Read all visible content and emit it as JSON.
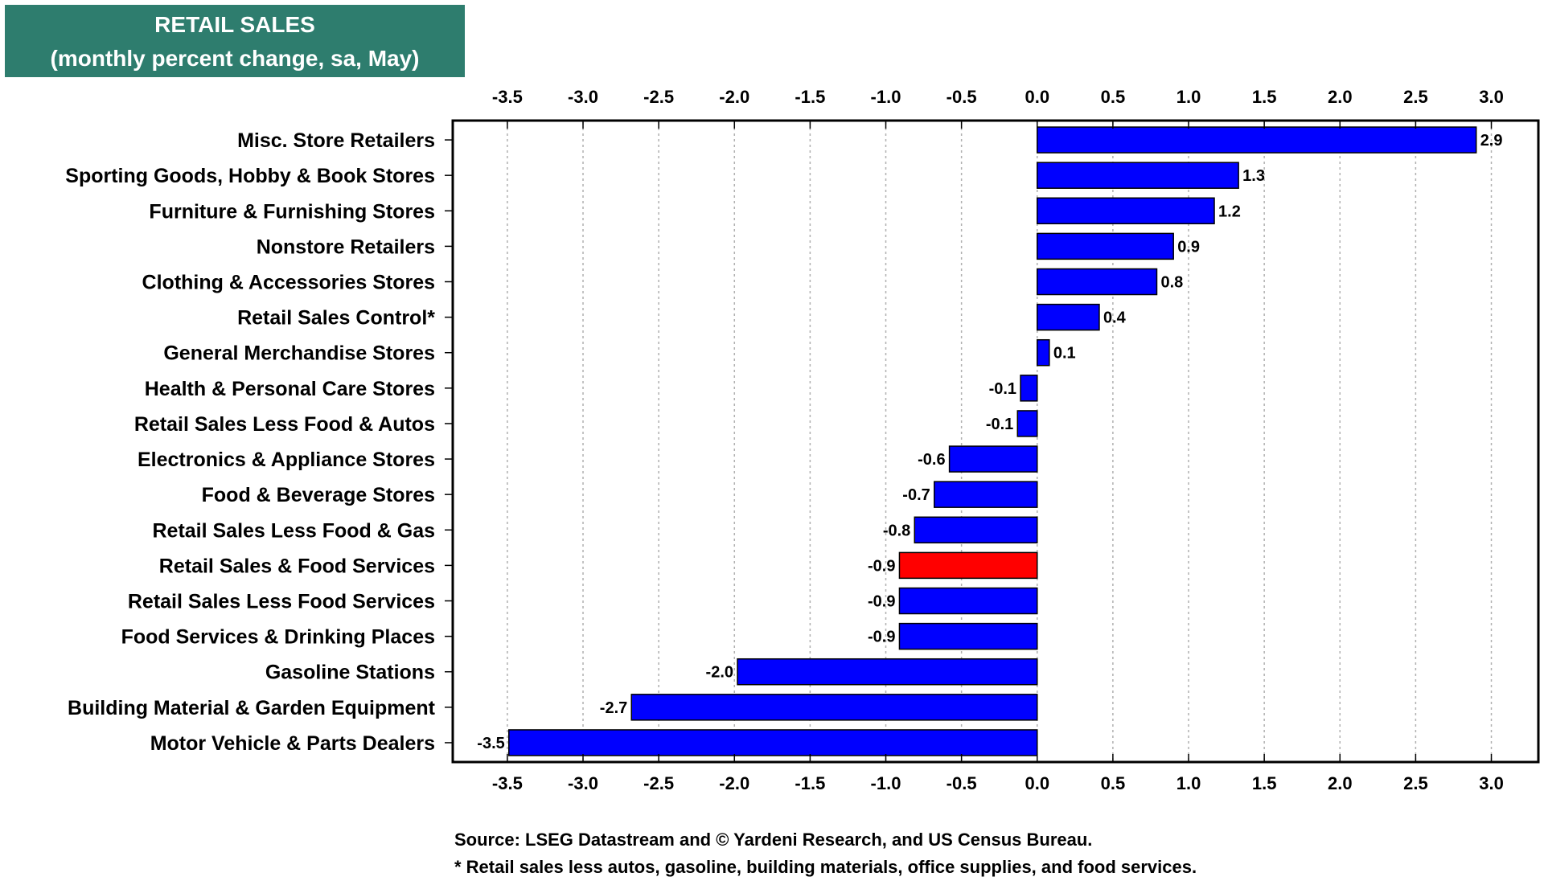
{
  "title": {
    "line1": "RETAIL SALES",
    "line2": "(monthly percent change, sa,  May)"
  },
  "colors": {
    "title_bg": "#2e7d6e",
    "bar": "#0000ff",
    "highlight": "#ff0000",
    "frame": "#000000"
  },
  "chart_data": {
    "type": "bar",
    "orientation": "horizontal",
    "title": "RETAIL SALES (monthly percent change, sa,  May)",
    "xlabel": "",
    "ylabel": "",
    "xlim": [
      -3.85,
      3.3
    ],
    "ticks": [
      "-3.5",
      "-3.0",
      "-2.5",
      "-2.0",
      "-1.5",
      "-1.0",
      "-0.5",
      "0.0",
      "0.5",
      "1.0",
      "1.5",
      "2.0",
      "2.5",
      "3.0"
    ],
    "tick_values": [
      -3.5,
      -3.0,
      -2.5,
      -2.0,
      -1.5,
      -1.0,
      -0.5,
      0.0,
      0.5,
      1.0,
      1.5,
      2.0,
      2.5,
      3.0
    ],
    "grid": true,
    "highlight_category": "Retail Sales & Food Services",
    "categories": [
      "Misc. Store Retailers",
      "Sporting Goods, Hobby & Book Stores",
      "Furniture & Furnishing Stores",
      "Nonstore Retailers",
      "Clothing & Accessories Stores",
      "Retail Sales Control*",
      "General Merchandise Stores",
      "Health & Personal Care Stores",
      "Retail Sales Less Food & Autos",
      "Electronics & Appliance Stores",
      "Food & Beverage Stores",
      "Retail Sales Less Food & Gas",
      "Retail Sales & Food Services",
      "Retail Sales Less Food Services",
      "Food Services & Drinking Places",
      "Gasoline Stations",
      "Building Material & Garden Equipment",
      "Motor Vehicle & Parts Dealers"
    ],
    "values": [
      2.9,
      1.33,
      1.17,
      0.9,
      0.79,
      0.41,
      0.08,
      -0.11,
      -0.13,
      -0.58,
      -0.68,
      -0.81,
      -0.91,
      -0.91,
      -0.91,
      -1.98,
      -2.68,
      -3.49
    ],
    "value_labels": [
      "2.9",
      "1.3",
      "1.2",
      "0.9",
      "0.8",
      "0.4",
      "0.1",
      "-0.1",
      "-0.1",
      "-0.6",
      "-0.7",
      "-0.8",
      "-0.9",
      "-0.9",
      "-0.9",
      "-2.0",
      "-2.7",
      "-3.5"
    ]
  },
  "footer": {
    "source": "Source: LSEG Datastream and © Yardeni Research, and US Census Bureau.",
    "note": "* Retail sales less autos, gasoline, building materials, office supplies, and food services."
  }
}
